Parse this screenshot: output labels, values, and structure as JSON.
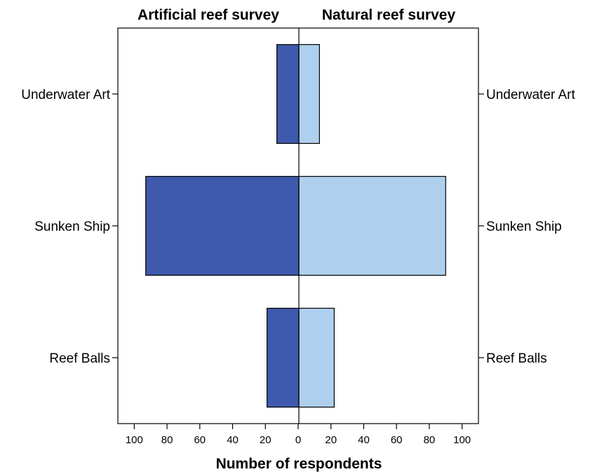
{
  "chart_data": {
    "type": "bar",
    "orientation": "horizontal-butterfly",
    "categories": [
      "Underwater Art",
      "Sunken Ship",
      "Reef Balls"
    ],
    "series": [
      {
        "name": "Artificial reef survey",
        "side": "left",
        "color": "#3f5aad",
        "values": [
          13,
          93,
          19
        ]
      },
      {
        "name": "Natural reef survey",
        "side": "right",
        "color": "#aed0ee",
        "values": [
          13,
          90,
          22
        ]
      }
    ],
    "xlabel": "Number of respondents",
    "xticks": [
      100,
      80,
      60,
      40,
      20,
      0,
      20,
      40,
      60,
      80,
      100
    ],
    "xlim": [
      -110,
      110
    ],
    "grid": false,
    "legend": "none"
  }
}
